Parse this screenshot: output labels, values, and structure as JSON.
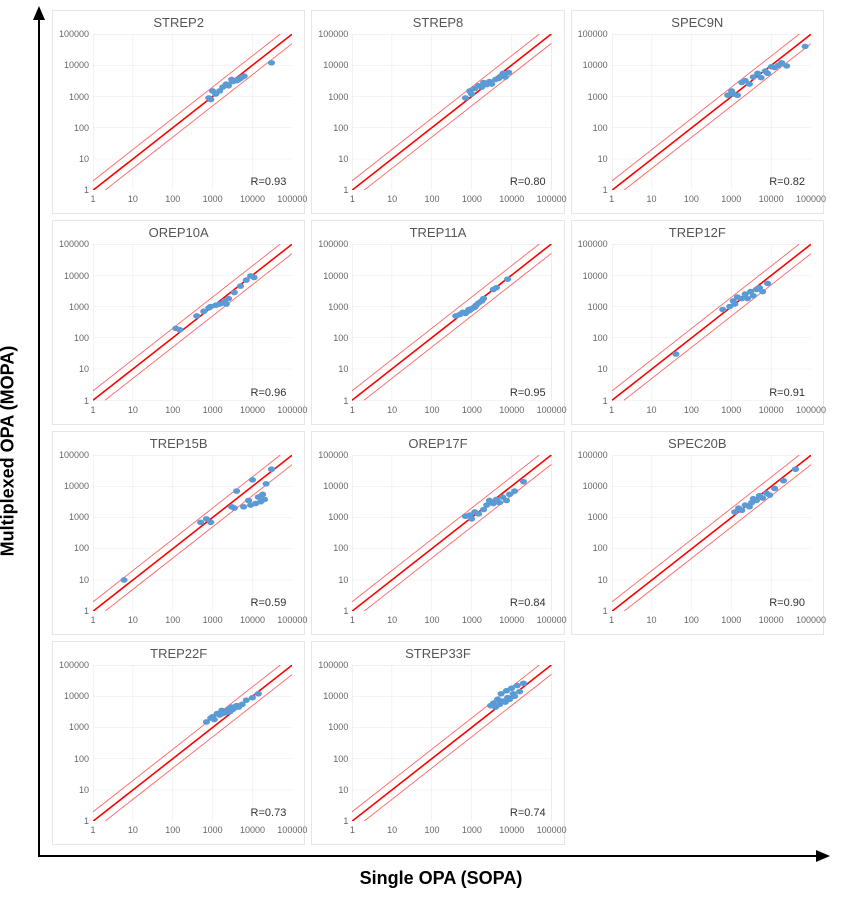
{
  "axis_labels": {
    "x": "Single OPA (SOPA)",
    "y": "Multiplexed OPA (MOPA)"
  },
  "global": {
    "xlim": [
      1,
      100000
    ],
    "ylim": [
      1,
      100000
    ],
    "log_base": 10,
    "x_ticks": [
      1,
      10,
      100,
      1000,
      10000,
      100000
    ],
    "y_ticks": [
      1,
      10,
      100,
      1000,
      10000,
      100000
    ],
    "grid_color": "#e9e9e9",
    "axis_color": "#bdbdbd",
    "tick_color": "#666666",
    "marker_color": "#5b9bd5",
    "marker_size": 3.2,
    "center_line_color": "#ff0000",
    "center_line_width": 1.6,
    "bound_line_color": "#ff6666",
    "bound_line_width": 0.9,
    "bound_offset_log10": 0.301,
    "background": "#ffffff",
    "title_fontsize": 13,
    "tick_fontsize": 9,
    "r_label_fontsize": 11
  },
  "panels": [
    {
      "title": "STREP2",
      "r": "R=0.93",
      "points": [
        [
          800,
          900
        ],
        [
          900,
          800
        ],
        [
          1000,
          1500
        ],
        [
          1200,
          1200
        ],
        [
          1500,
          1500
        ],
        [
          1800,
          2000
        ],
        [
          2200,
          2500
        ],
        [
          2500,
          2200
        ],
        [
          3000,
          3500
        ],
        [
          3200,
          3000
        ],
        [
          4000,
          3200
        ],
        [
          4500,
          3500
        ],
        [
          5000,
          3800
        ],
        [
          5500,
          4200
        ],
        [
          6200,
          4500
        ],
        [
          30000,
          12000
        ]
      ]
    },
    {
      "title": "STREP8",
      "r": "R=0.80",
      "points": [
        [
          700,
          900
        ],
        [
          900,
          1500
        ],
        [
          1000,
          1200
        ],
        [
          1200,
          1800
        ],
        [
          1500,
          2200
        ],
        [
          1800,
          2000
        ],
        [
          2000,
          2800
        ],
        [
          2400,
          2400
        ],
        [
          2800,
          3000
        ],
        [
          3200,
          2500
        ],
        [
          4000,
          3500
        ],
        [
          4800,
          3800
        ],
        [
          5500,
          4500
        ],
        [
          6200,
          5500
        ],
        [
          7000,
          4200
        ],
        [
          8500,
          5900
        ]
      ]
    },
    {
      "title": "SPEC9N",
      "r": "R=0.82",
      "points": [
        [
          800,
          1100
        ],
        [
          1000,
          1500
        ],
        [
          1100,
          1200
        ],
        [
          1400,
          1100
        ],
        [
          1800,
          2800
        ],
        [
          2200,
          3200
        ],
        [
          2800,
          2500
        ],
        [
          3500,
          4200
        ],
        [
          4500,
          5500
        ],
        [
          5500,
          4000
        ],
        [
          7000,
          6500
        ],
        [
          8000,
          5500
        ],
        [
          10000,
          9000
        ],
        [
          12000,
          8500
        ],
        [
          15000,
          10000
        ],
        [
          18000,
          12000
        ],
        [
          24000,
          9500
        ],
        [
          70000,
          40000
        ]
      ]
    },
    {
      "title": "OREP10A",
      "r": "R=0.96",
      "points": [
        [
          120,
          200
        ],
        [
          150,
          180
        ],
        [
          400,
          500
        ],
        [
          600,
          700
        ],
        [
          800,
          900
        ],
        [
          900,
          1000
        ],
        [
          1200,
          1100
        ],
        [
          1500,
          1200
        ],
        [
          1800,
          1300
        ],
        [
          2000,
          1500
        ],
        [
          2200,
          1200
        ],
        [
          2500,
          1800
        ],
        [
          3500,
          2800
        ],
        [
          5000,
          4500
        ],
        [
          7000,
          7000
        ],
        [
          9000,
          9500
        ],
        [
          11000,
          8500
        ]
      ]
    },
    {
      "title": "TREP11A",
      "r": "R=0.95",
      "points": [
        [
          400,
          500
        ],
        [
          500,
          550
        ],
        [
          600,
          650
        ],
        [
          700,
          600
        ],
        [
          800,
          700
        ],
        [
          850,
          800
        ],
        [
          900,
          750
        ],
        [
          1000,
          850
        ],
        [
          1100,
          900
        ],
        [
          1200,
          950
        ],
        [
          1300,
          1100
        ],
        [
          1500,
          1300
        ],
        [
          1800,
          1500
        ],
        [
          2000,
          1800
        ],
        [
          3500,
          3500
        ],
        [
          4200,
          4000
        ],
        [
          8000,
          7500
        ]
      ]
    },
    {
      "title": "TREP12F",
      "r": "R=0.91",
      "points": [
        [
          40,
          30
        ],
        [
          600,
          800
        ],
        [
          900,
          1000
        ],
        [
          1100,
          1500
        ],
        [
          1200,
          1200
        ],
        [
          1400,
          2000
        ],
        [
          1800,
          1800
        ],
        [
          2200,
          2500
        ],
        [
          2500,
          1800
        ],
        [
          3000,
          3000
        ],
        [
          3500,
          2200
        ],
        [
          4200,
          3500
        ],
        [
          5000,
          4000
        ],
        [
          6000,
          3000
        ],
        [
          8000,
          5500
        ]
      ]
    },
    {
      "title": "TREP15B",
      "r": "R=0.59",
      "points": [
        [
          6,
          10
        ],
        [
          500,
          700
        ],
        [
          700,
          900
        ],
        [
          900,
          700
        ],
        [
          3000,
          2200
        ],
        [
          3500,
          2000
        ],
        [
          4000,
          7000
        ],
        [
          6000,
          2200
        ],
        [
          8000,
          3500
        ],
        [
          9000,
          2500
        ],
        [
          10000,
          16000
        ],
        [
          12000,
          2800
        ],
        [
          14000,
          4500
        ],
        [
          16000,
          3200
        ],
        [
          18000,
          5500
        ],
        [
          20000,
          3800
        ],
        [
          22000,
          12000
        ],
        [
          30000,
          35000
        ]
      ]
    },
    {
      "title": "OREP17F",
      "r": "R=0.84",
      "points": [
        [
          700,
          1100
        ],
        [
          900,
          1200
        ],
        [
          1000,
          900
        ],
        [
          1200,
          1500
        ],
        [
          1500,
          1300
        ],
        [
          2000,
          1800
        ],
        [
          2400,
          2500
        ],
        [
          2800,
          3500
        ],
        [
          3500,
          2800
        ],
        [
          4200,
          3800
        ],
        [
          5000,
          3000
        ],
        [
          6000,
          4500
        ],
        [
          7500,
          3500
        ],
        [
          9000,
          5500
        ],
        [
          12000,
          7000
        ],
        [
          20000,
          14000
        ]
      ]
    },
    {
      "title": "SPEC20B",
      "r": "R=0.90",
      "points": [
        [
          1200,
          1500
        ],
        [
          1500,
          2000
        ],
        [
          1800,
          1700
        ],
        [
          2200,
          2500
        ],
        [
          2800,
          2200
        ],
        [
          3200,
          3000
        ],
        [
          3500,
          4000
        ],
        [
          4200,
          3500
        ],
        [
          5000,
          5000
        ],
        [
          6000,
          4200
        ],
        [
          7500,
          6000
        ],
        [
          9000,
          5200
        ],
        [
          12000,
          8500
        ],
        [
          20000,
          15000
        ],
        [
          40000,
          35000
        ]
      ]
    },
    {
      "title": "TREP22F",
      "r": "R=0.73",
      "points": [
        [
          700,
          1500
        ],
        [
          900,
          2000
        ],
        [
          1000,
          2200
        ],
        [
          1100,
          1800
        ],
        [
          1300,
          2800
        ],
        [
          1500,
          2500
        ],
        [
          1700,
          3500
        ],
        [
          1800,
          2800
        ],
        [
          2000,
          3200
        ],
        [
          2200,
          3000
        ],
        [
          2500,
          3800
        ],
        [
          2700,
          3200
        ],
        [
          3000,
          4500
        ],
        [
          3200,
          3800
        ],
        [
          3500,
          4200
        ],
        [
          4000,
          5000
        ],
        [
          4500,
          4500
        ],
        [
          5500,
          5500
        ],
        [
          7000,
          7500
        ],
        [
          10000,
          9000
        ],
        [
          14000,
          12000
        ]
      ]
    },
    {
      "title": "STREP33F",
      "r": "R=0.74",
      "points": [
        [
          3000,
          5000
        ],
        [
          3500,
          6000
        ],
        [
          4000,
          4500
        ],
        [
          4500,
          8000
        ],
        [
          5000,
          5500
        ],
        [
          5500,
          12000
        ],
        [
          6000,
          7000
        ],
        [
          7000,
          6500
        ],
        [
          7500,
          15000
        ],
        [
          8000,
          9000
        ],
        [
          9000,
          8000
        ],
        [
          10000,
          18000
        ],
        [
          11000,
          12000
        ],
        [
          12000,
          10000
        ],
        [
          14000,
          22000
        ],
        [
          16000,
          14000
        ],
        [
          20000,
          26000
        ]
      ]
    }
  ]
}
